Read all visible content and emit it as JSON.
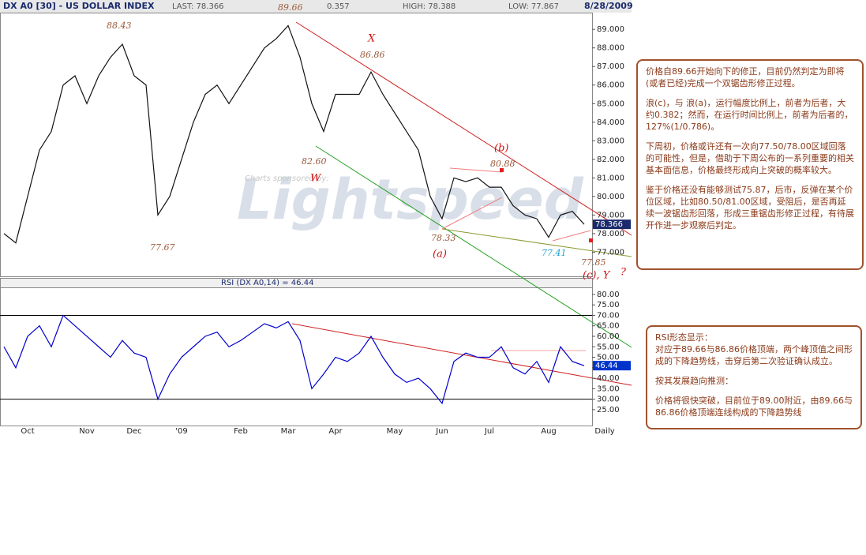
{
  "header": {
    "symbol": "DX A0 [30] - US DOLLAR INDEX",
    "last": "LAST: 78.366",
    "change": "0.357",
    "high": "HIGH: 78.388",
    "low": "LOW: 77.867",
    "date": "8/28/2009"
  },
  "chart_data": [
    {
      "type": "line",
      "categories": [
        null,
        null,
        "Oct",
        null,
        null,
        null,
        null,
        "Nov",
        null,
        null,
        null,
        "Dec",
        null,
        null,
        null,
        "'09",
        null,
        null,
        null,
        null,
        "Feb",
        null,
        null,
        null,
        "Mar",
        null,
        null,
        null,
        "Apr",
        null,
        null,
        null,
        null,
        "May",
        null,
        null,
        null,
        "Jun",
        null,
        null,
        null,
        "Jul",
        null,
        null,
        null,
        null,
        "Aug",
        null,
        null,
        null
      ],
      "values": [
        78.0,
        77.5,
        80.0,
        82.5,
        83.5,
        86.0,
        86.5,
        85.0,
        86.5,
        87.5,
        88.2,
        86.5,
        86.0,
        79.0,
        80.0,
        82.0,
        84.0,
        85.5,
        86.0,
        85.0,
        86.0,
        87.0,
        88.0,
        88.5,
        89.2,
        87.5,
        85.0,
        83.5,
        85.5,
        85.5,
        85.5,
        86.7,
        85.5,
        84.5,
        83.5,
        82.5,
        80.0,
        78.8,
        81.0,
        80.8,
        81.0,
        80.5,
        80.5,
        79.5,
        79.0,
        78.8,
        77.8,
        79.0,
        79.2,
        78.5
      ],
      "color": "#111111",
      "ylim": [
        75.7,
        89.9
      ],
      "yticks": [
        {
          "value": 77,
          "label": "77.000"
        },
        {
          "value": 78,
          "label": "78.000"
        },
        {
          "value": 79,
          "label": "79.000"
        },
        {
          "value": 80,
          "label": "80.000"
        },
        {
          "value": 81,
          "label": "81.000"
        },
        {
          "value": 82,
          "label": "82.000"
        },
        {
          "value": 83,
          "label": "83.000"
        },
        {
          "value": 84,
          "label": "84.000"
        },
        {
          "value": 85,
          "label": "85.000"
        },
        {
          "value": 86,
          "label": "86.000"
        },
        {
          "value": 87,
          "label": "87.000"
        },
        {
          "value": 88,
          "label": "88.000"
        },
        {
          "value": 89,
          "label": "89.000"
        }
      ],
      "last_label": "78.366",
      "x_end_label": "Daily"
    },
    {
      "type": "line",
      "title": "RSI (DX A0,14) = 46.44",
      "values": [
        55,
        45,
        60,
        65,
        55,
        70,
        65,
        60,
        55,
        50,
        58,
        52,
        50,
        30,
        42,
        50,
        55,
        60,
        62,
        55,
        58,
        62,
        66,
        64,
        67,
        58,
        35,
        42,
        50,
        48,
        52,
        60,
        50,
        42,
        38,
        40,
        35,
        28,
        48,
        52,
        50,
        50,
        55,
        45,
        42,
        48,
        38,
        55,
        48,
        46
      ],
      "color": "#0000cc",
      "ylim": [
        17.8,
        82.6
      ],
      "yticks": [
        {
          "value": 25,
          "label": "25.00"
        },
        {
          "value": 30,
          "label": "30.00"
        },
        {
          "value": 35,
          "label": "35.00"
        },
        {
          "value": 40,
          "label": "40.00"
        },
        {
          "value": 45,
          "label": "45.00"
        },
        {
          "value": 50,
          "label": "50.00"
        },
        {
          "value": 55,
          "label": "55.00"
        },
        {
          "value": 60,
          "label": "60.00"
        },
        {
          "value": 65,
          "label": "65.00"
        },
        {
          "value": 70,
          "label": "70.00"
        },
        {
          "value": 75,
          "label": "75.00"
        },
        {
          "value": 80,
          "label": "80.00"
        }
      ],
      "reference_lines": [
        70,
        30
      ],
      "last_label": "46.44"
    }
  ],
  "annotations": [
    "89.66",
    "88.43",
    "77.67",
    "82.60",
    "W",
    "X",
    "86.86",
    "78.33",
    "(a)",
    "(b)",
    "80.88",
    "77.41",
    "77.85",
    "(c), Y",
    "?"
  ],
  "watermark": {
    "sponsor": "Charts sponsored by:",
    "brand": "Lightspeed"
  },
  "notes": [
    [
      "价格自89.66开始向下的修正，目前仍然判定为即将(或者已经)完成一个双锯齿形修正过程。",
      "浪(c)，与 浪(a)，运行幅度比例上，前者为后者，大约0.382；然而，在运行时间比例上，前者为后者的，127%(1/0.786)。",
      "下周初，价格或许还有一次向77.50/78.00区域回落的可能性，但是，借助于下周公布的一系列重要的相关基本面信息，价格最终形成向上突破的概率较大。",
      "鉴于价格还没有能够测试75.87，后市，反弹在某个价位区域，比如80.50/81.00区域，受阻后，是否再延续一波锯齿形回落，形成三重锯齿形修正过程，有待展开作进一步观察后判定。"
    ],
    [
      "RSI形态显示：",
      "对应于89.66与86.86价格顶端，两个峰顶值之间形成的下降趋势线，击穿后第二次验证确认成立。",
      "按其发展趋向推测：",
      "价格将很快突破，目前位于89.00附近，由89.66与86.86价格顶端连线构成的下降趋势线"
    ]
  ]
}
